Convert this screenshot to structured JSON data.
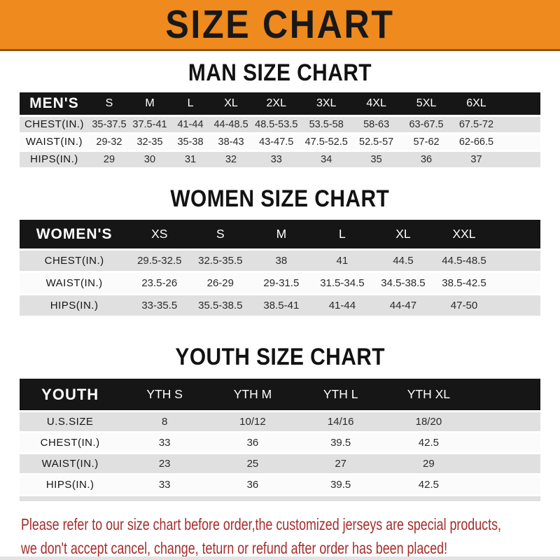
{
  "banner": {
    "title": "SIZE CHART"
  },
  "sections": [
    {
      "title": "MAN SIZE CHART",
      "table": {
        "label": "MEN'S",
        "columns": [
          "S",
          "M",
          "L",
          "XL",
          "2XL",
          "3XL",
          "4XL",
          "5XL",
          "6XL"
        ],
        "rows": [
          {
            "label": "CHEST(IN.)",
            "values": [
              "35-37.5",
              "37.5-41",
              "41-44",
              "44-48.5",
              "48.5-53.5",
              "53.5-58",
              "58-63",
              "63-67.5",
              "67.5-72"
            ]
          },
          {
            "label": "WAIST(IN.)",
            "values": [
              "29-32",
              "32-35",
              "35-38",
              "38-43",
              "43-47.5",
              "47.5-52.5",
              "52.5-57",
              "57-62",
              "62-66.5"
            ]
          },
          {
            "label": "HIPS(IN.)",
            "values": [
              "29",
              "30",
              "31",
              "32",
              "33",
              "34",
              "35",
              "36",
              "37"
            ]
          }
        ]
      }
    },
    {
      "title": "WOMEN SIZE CHART",
      "table": {
        "label": "WOMEN'S",
        "columns": [
          "XS",
          "S",
          "M",
          "L",
          "XL",
          "XXL"
        ],
        "rows": [
          {
            "label": "CHEST(IN.)",
            "values": [
              "29.5-32.5",
              "32.5-35.5",
              "38",
              "41",
              "44.5",
              "44.5-48.5"
            ]
          },
          {
            "label": "WAIST(IN.)",
            "values": [
              "23.5-26",
              "26-29",
              "29-31.5",
              "31.5-34.5",
              "34.5-38.5",
              "38.5-42.5"
            ]
          },
          {
            "label": "HIPS(IN.)",
            "values": [
              "33-35.5",
              "35.5-38.5",
              "38.5-41",
              "41-44",
              "44-47",
              "47-50"
            ]
          }
        ]
      }
    },
    {
      "title": "YOUTH SIZE CHART",
      "table": {
        "label": "YOUTH",
        "columns": [
          "YTH S",
          "YTH M",
          "YTH L",
          "YTH XL"
        ],
        "rows": [
          {
            "label": "U.S.SIZE",
            "values": [
              "8",
              "10/12",
              "14/16",
              "18/20"
            ]
          },
          {
            "label": "CHEST(IN.)",
            "values": [
              "33",
              "36",
              "39.5",
              "42.5"
            ]
          },
          {
            "label": "WAIST(IN.)",
            "values": [
              "23",
              "25",
              "27",
              "29"
            ]
          },
          {
            "label": "HIPS(IN.)",
            "values": [
              "33",
              "36",
              "39.5",
              "42.5"
            ]
          }
        ]
      }
    }
  ],
  "footer": {
    "line1": "Please refer to our size chart before order,the customized jerseys are special products,",
    "line2": "we don't accept cancel, change, teturn or refund after order has been placed!"
  },
  "colors": {
    "banner_orange": "#EE8A1E",
    "banner_border": "#8F5510",
    "header_black": "#161616",
    "row_gray": "#E0E0E0",
    "row_white": "#FBFBFB",
    "footer_red": "#A52D2D"
  }
}
